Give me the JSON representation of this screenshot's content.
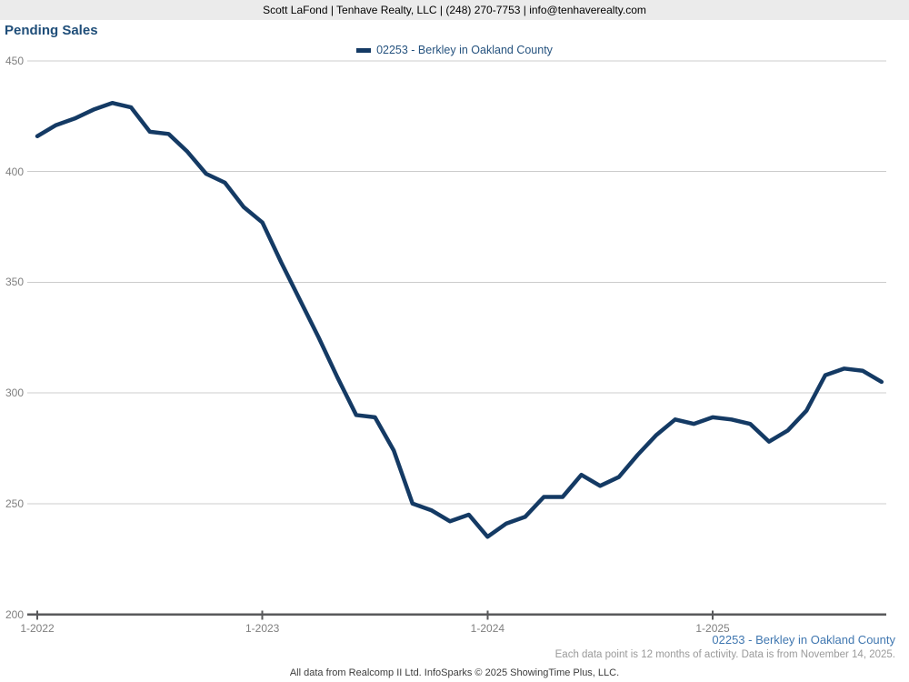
{
  "header": {
    "contact": "Scott LaFond | Tenhave Realty, LLC | (248) 270-7753 | info@tenhaverealty.com"
  },
  "title": "Pending Sales",
  "legend": {
    "label": "02253 - Berkley in Oakland County"
  },
  "footer": {
    "series_label": "02253 - Berkley in Oakland County",
    "note": "Each data point is 12 months of activity. Data is from November 14, 2025.",
    "credit": "All data from Realcomp II Ltd. InfoSparks © 2025 ShowingTime Plus, LLC."
  },
  "colors": {
    "line": "#143a64",
    "title": "#1f4e79",
    "legend_text": "#26537f",
    "footer_series": "#4077b0",
    "gridline": "#cccccc",
    "axis": "#58595b",
    "axis_label": "#7f7f7f",
    "header_bg": "#ebebeb"
  },
  "chart_data": {
    "type": "line",
    "title": "Pending Sales",
    "xlabel": "",
    "ylabel": "",
    "ylim": [
      200,
      450
    ],
    "yticks": [
      200,
      250,
      300,
      350,
      400,
      450
    ],
    "grid": "horizontal",
    "legend_position": "top-center",
    "xtick_labels": [
      "1-2022",
      "1-2023",
      "1-2024",
      "1-2025"
    ],
    "x": [
      "1-2022",
      "2-2022",
      "3-2022",
      "4-2022",
      "5-2022",
      "6-2022",
      "7-2022",
      "8-2022",
      "9-2022",
      "10-2022",
      "11-2022",
      "12-2022",
      "1-2023",
      "2-2023",
      "3-2023",
      "4-2023",
      "5-2023",
      "6-2023",
      "7-2023",
      "8-2023",
      "9-2023",
      "10-2023",
      "11-2023",
      "12-2023",
      "1-2024",
      "2-2024",
      "3-2024",
      "4-2024",
      "5-2024",
      "6-2024",
      "7-2024",
      "8-2024",
      "9-2024",
      "10-2024",
      "11-2024",
      "12-2024",
      "1-2025",
      "2-2025",
      "3-2025",
      "4-2025",
      "5-2025",
      "6-2025",
      "7-2025",
      "8-2025",
      "9-2025",
      "10-2025"
    ],
    "series": [
      {
        "name": "02253 - Berkley in Oakland County",
        "color": "#143a64",
        "values": [
          416,
          421,
          424,
          428,
          431,
          429,
          418,
          417,
          409,
          399,
          395,
          384,
          377,
          359,
          342,
          325,
          307,
          290,
          289,
          274,
          250,
          247,
          242,
          245,
          235,
          241,
          244,
          253,
          253,
          263,
          258,
          262,
          272,
          281,
          288,
          286,
          289,
          288,
          286,
          278,
          283,
          292,
          308,
          311,
          310,
          305
        ]
      }
    ]
  }
}
